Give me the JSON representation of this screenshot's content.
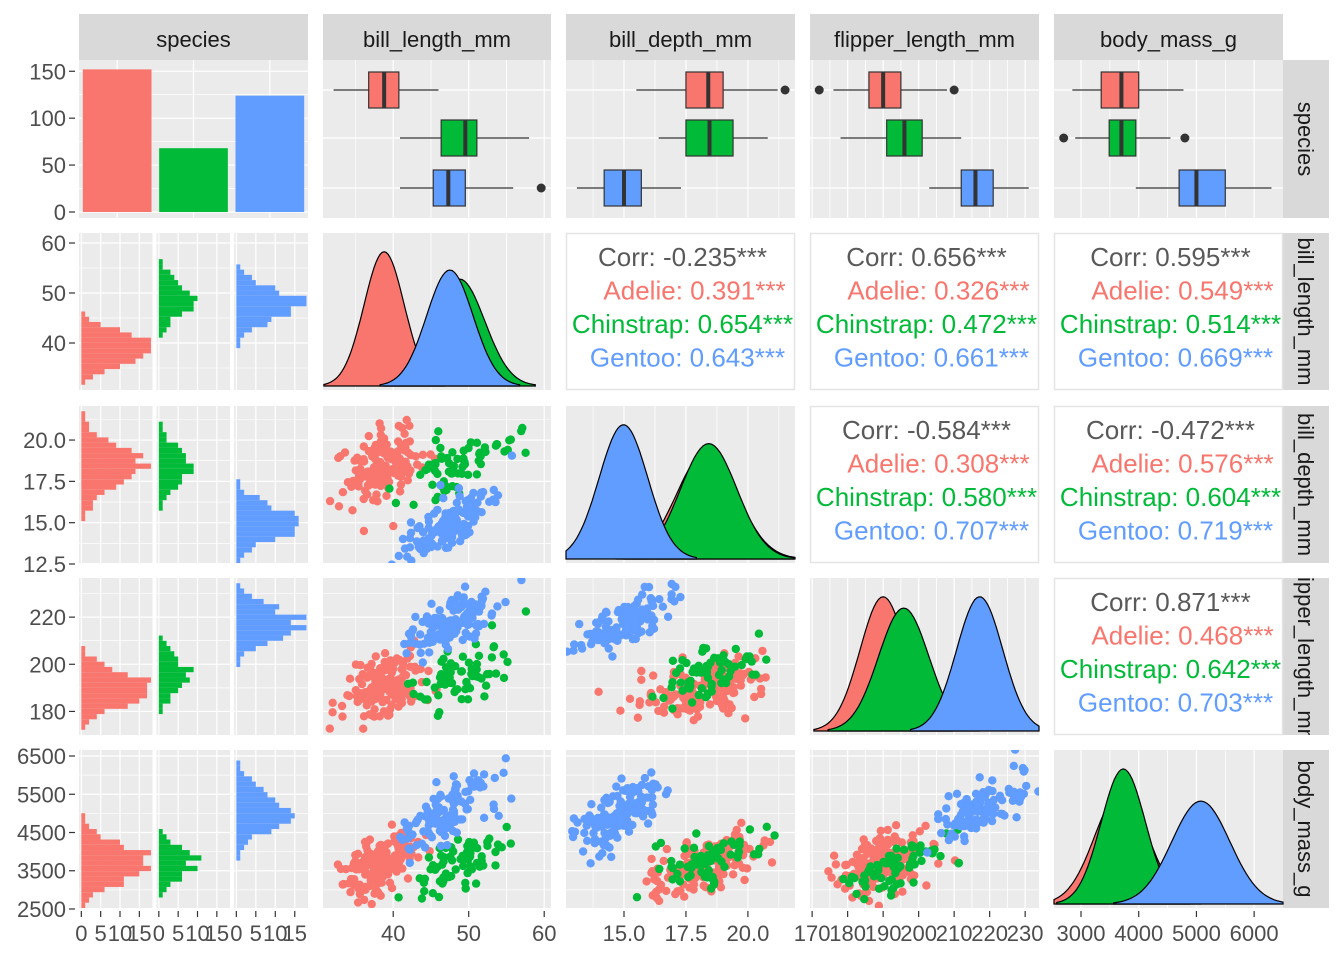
{
  "chart_data": {
    "type": "scatter-matrix",
    "variables": [
      "species",
      "bill_length_mm",
      "bill_depth_mm",
      "flipper_length_mm",
      "body_mass_g"
    ],
    "species": [
      "Adelie",
      "Chinstrap",
      "Gentoo"
    ],
    "colors": {
      "Adelie": "#F8766D",
      "Chinstrap": "#00BA38",
      "Gentoo": "#619CFF",
      "overall": "#595959"
    },
    "species_counts": [
      152,
      68,
      124
    ],
    "axes": {
      "species_count": {
        "range": [
          -6.4,
          162
        ],
        "ticks": [
          "0",
          "50",
          "100",
          "150"
        ]
      },
      "hist_count": {
        "range": [
          -0.6,
          18.4
        ],
        "ticks": [
          "0",
          "5",
          "10",
          "15"
        ]
      },
      "bill_length_mm": {
        "x_range": [
          30.7,
          60.9
        ],
        "y_range": [
          30.6,
          62
        ],
        "x_ticks": [
          "40",
          "50",
          "60"
        ],
        "y_ticks": [
          "40",
          "50",
          "60"
        ]
      },
      "bill_depth_mm": {
        "x_range": [
          12.66,
          21.9
        ],
        "y_range": [
          12.56,
          22.06
        ],
        "x_ticks": [
          "15.0",
          "17.5",
          "20.0"
        ],
        "y_ticks": [
          "12.5",
          "15.0",
          "17.5",
          "20.0"
        ]
      },
      "flipper_length_mm": {
        "x_range": [
          169.4,
          233.9
        ],
        "y_range": [
          170,
          236.6
        ],
        "x_ticks": [
          "170",
          "180",
          "190",
          "200",
          "210",
          "220",
          "230"
        ],
        "y_ticks": [
          "180",
          "200",
          "220"
        ]
      },
      "body_mass_g": {
        "x_range": [
          2532,
          6500
        ],
        "y_range": [
          2526,
          6657
        ],
        "x_ticks": [
          "3000",
          "4000",
          "5000",
          "6000"
        ],
        "y_ticks": [
          "2500",
          "3500",
          "4500",
          "5500",
          "6500"
        ]
      }
    },
    "boxplots": {
      "bill_length_mm": {
        "Adelie": {
          "min": 32.1,
          "q1": 36.75,
          "median": 38.8,
          "q3": 40.75,
          "max": 46.0,
          "outliers": []
        },
        "Chinstrap": {
          "min": 40.9,
          "q1": 46.35,
          "median": 49.55,
          "q3": 51.08,
          "max": 58.0,
          "outliers": []
        },
        "Gentoo": {
          "min": 40.9,
          "q1": 45.3,
          "median": 47.3,
          "q3": 49.55,
          "max": 55.9,
          "outliers": [
            59.6
          ]
        }
      },
      "bill_depth_mm": {
        "Adelie": {
          "min": 15.5,
          "q1": 17.5,
          "median": 18.4,
          "q3": 19.0,
          "max": 21.2,
          "outliers": [
            21.5
          ]
        },
        "Chinstrap": {
          "min": 16.4,
          "q1": 17.5,
          "median": 18.45,
          "q3": 19.4,
          "max": 20.8,
          "outliers": []
        },
        "Gentoo": {
          "min": 13.1,
          "q1": 14.2,
          "median": 15.0,
          "q3": 15.7,
          "max": 17.3,
          "outliers": []
        }
      },
      "flipper_length_mm": {
        "Adelie": {
          "min": 176,
          "q1": 186,
          "median": 190,
          "q3": 195,
          "max": 208,
          "outliers": [
            172,
            210
          ]
        },
        "Chinstrap": {
          "min": 178,
          "q1": 191,
          "median": 196,
          "q3": 201,
          "max": 212,
          "outliers": []
        },
        "Gentoo": {
          "min": 203,
          "q1": 212,
          "median": 216,
          "q3": 221,
          "max": 231,
          "outliers": []
        }
      },
      "body_mass_g": {
        "Adelie": {
          "min": 2850,
          "q1": 3350,
          "median": 3700,
          "q3": 4000,
          "max": 4775,
          "outliers": []
        },
        "Chinstrap": {
          "min": 2900,
          "q1": 3488,
          "median": 3700,
          "q3": 3950,
          "max": 4550,
          "outliers": [
            2700,
            4800
          ]
        },
        "Gentoo": {
          "min": 3950,
          "q1": 4700,
          "median": 5000,
          "q3": 5500,
          "max": 6300,
          "outliers": []
        }
      }
    },
    "distributions": {
      "bill_length_mm": {
        "Adelie": [
          38.8,
          2.66
        ],
        "Chinstrap": [
          48.8,
          3.34
        ],
        "Gentoo": [
          47.5,
          3.08
        ]
      },
      "bill_depth_mm": {
        "Adelie": [
          18.35,
          1.22
        ],
        "Chinstrap": [
          18.42,
          1.14
        ],
        "Gentoo": [
          14.98,
          0.98
        ]
      },
      "flipper_length_mm": {
        "Adelie": [
          190.0,
          6.5
        ],
        "Chinstrap": [
          195.8,
          7.1
        ],
        "Gentoo": [
          217.2,
          6.5
        ]
      },
      "body_mass_g": {
        "Adelie": [
          3700,
          459
        ],
        "Chinstrap": [
          3733,
          384
        ],
        "Gentoo": [
          5076,
          504
        ]
      }
    },
    "correlations": [
      {
        "row": "bill_length_mm",
        "col": "bill_depth_mm",
        "overall": "Corr: -0.235***",
        "Adelie": "Adelie: 0.391***",
        "Chinstrap": "Chinstrap: 0.654***",
        "Gentoo": "Gentoo: 0.643***",
        "r": [
          0.391,
          0.654,
          0.643
        ]
      },
      {
        "row": "bill_length_mm",
        "col": "flipper_length_mm",
        "overall": "Corr: 0.656***",
        "Adelie": "Adelie: 0.326***",
        "Chinstrap": "Chinstrap: 0.472***",
        "Gentoo": "Gentoo: 0.661***",
        "r": [
          0.326,
          0.472,
          0.661
        ]
      },
      {
        "row": "bill_length_mm",
        "col": "body_mass_g",
        "overall": "Corr: 0.595***",
        "Adelie": "Adelie: 0.549***",
        "Chinstrap": "Chinstrap: 0.514***",
        "Gentoo": "Gentoo: 0.669***",
        "r": [
          0.549,
          0.514,
          0.669
        ]
      },
      {
        "row": "bill_depth_mm",
        "col": "flipper_length_mm",
        "overall": "Corr: -0.584***",
        "Adelie": "Adelie: 0.308***",
        "Chinstrap": "Chinstrap: 0.580***",
        "Gentoo": "Gentoo: 0.707***",
        "r": [
          0.308,
          0.58,
          0.707
        ]
      },
      {
        "row": "bill_depth_mm",
        "col": "body_mass_g",
        "overall": "Corr: -0.472***",
        "Adelie": "Adelie: 0.576***",
        "Chinstrap": "Chinstrap: 0.604***",
        "Gentoo": "Gentoo: 0.719***",
        "r": [
          0.576,
          0.604,
          0.719
        ]
      },
      {
        "row": "flipper_length_mm",
        "col": "body_mass_g",
        "overall": "Corr: 0.871***",
        "Adelie": "Adelie: 0.468***",
        "Chinstrap": "Chinstrap: 0.642***",
        "Gentoo": "Gentoo: 0.703***",
        "r": [
          0.468,
          0.642,
          0.703
        ]
      }
    ]
  }
}
